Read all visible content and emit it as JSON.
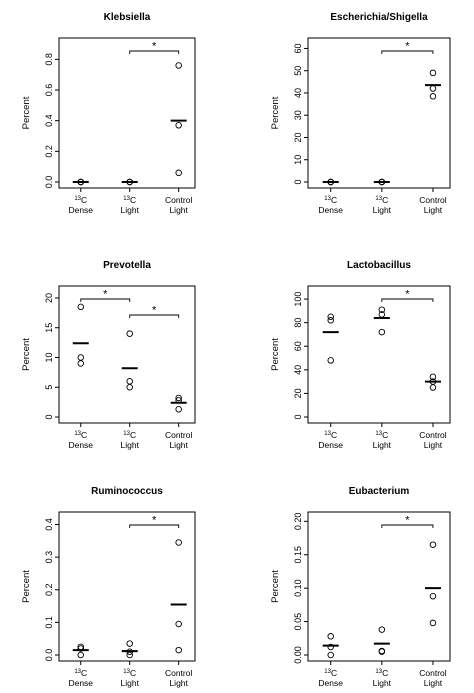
{
  "chart_data": [
    {
      "type": "scatter",
      "title": "Klebsiella",
      "ylabel": "Percent",
      "categories": [
        [
          "13C",
          "Dense"
        ],
        [
          "13C",
          "Light"
        ],
        [
          "Control",
          "Light"
        ]
      ],
      "ylim": [
        0,
        0.9
      ],
      "yticks": [
        "0.0",
        "0.2",
        "0.4",
        "0.6",
        "0.8"
      ],
      "points": [
        [
          0,
          0,
          0
        ],
        [
          0,
          0,
          0
        ],
        [
          0.76,
          0.37,
          0.06
        ]
      ],
      "means": [
        0,
        0,
        0.4
      ],
      "significance": [
        {
          "from": 1,
          "to": 2,
          "label": "*"
        }
      ]
    },
    {
      "type": "scatter",
      "title": "Escherichia/Shigella",
      "ylabel": "Percent",
      "categories": [
        [
          "13C",
          "Dense"
        ],
        [
          "13C",
          "Light"
        ],
        [
          "Control",
          "Light"
        ]
      ],
      "ylim": [
        0,
        62
      ],
      "yticks": [
        "0",
        "10",
        "20",
        "30",
        "40",
        "50",
        "60"
      ],
      "points": [
        [
          0,
          0,
          0
        ],
        [
          0,
          0,
          0
        ],
        [
          49,
          42,
          38.5
        ]
      ],
      "means": [
        0,
        0,
        43.5
      ],
      "significance": [
        {
          "from": 1,
          "to": 2,
          "label": "*"
        }
      ]
    },
    {
      "type": "scatter",
      "title": "Prevotella",
      "ylabel": "Percent",
      "categories": [
        [
          "13C",
          "Dense"
        ],
        [
          "13C",
          "Light"
        ],
        [
          "Control",
          "Light"
        ]
      ],
      "ylim": [
        0,
        21
      ],
      "yticks": [
        "0",
        "5",
        "10",
        "15",
        "20"
      ],
      "points": [
        [
          18.5,
          10,
          9
        ],
        [
          14,
          6,
          5
        ],
        [
          3.2,
          2.8,
          1.3
        ]
      ],
      "means": [
        12.4,
        8.2,
        2.4
      ],
      "significance": [
        {
          "from": 0,
          "to": 1,
          "label": "*"
        },
        {
          "from": 1,
          "to": 2,
          "label": "*"
        }
      ]
    },
    {
      "type": "scatter",
      "title": "Lactobacillus",
      "ylabel": "Percent",
      "categories": [
        [
          "13C",
          "Dense"
        ],
        [
          "13C",
          "Light"
        ],
        [
          "Control",
          "Light"
        ]
      ],
      "ylim": [
        0,
        106
      ],
      "yticks": [
        "0",
        "20",
        "40",
        "60",
        "80",
        "100"
      ],
      "points": [
        [
          85,
          82,
          48
        ],
        [
          91,
          87,
          72
        ],
        [
          34,
          30,
          25
        ]
      ],
      "means": [
        72,
        84,
        30
      ],
      "significance": [
        {
          "from": 1,
          "to": 2,
          "label": "*"
        }
      ]
    },
    {
      "type": "scatter",
      "title": "Ruminococcus",
      "ylabel": "Percent",
      "categories": [
        [
          "13C",
          "Dense"
        ],
        [
          "13C",
          "Light"
        ],
        [
          "Control",
          "Light"
        ]
      ],
      "ylim": [
        0,
        0.42
      ],
      "yticks": [
        "0.0",
        "0.1",
        "0.2",
        "0.3",
        "0.4"
      ],
      "points": [
        [
          0.025,
          0.02,
          0.0
        ],
        [
          0.035,
          0.01,
          0.0
        ],
        [
          0.345,
          0.095,
          0.015
        ]
      ],
      "means": [
        0.015,
        0.012,
        0.155
      ],
      "significance": [
        {
          "from": 1,
          "to": 2,
          "label": "*"
        }
      ]
    },
    {
      "type": "scatter",
      "title": "Eubacterium",
      "ylabel": "Percent",
      "categories": [
        [
          "13C",
          "Dense"
        ],
        [
          "13C",
          "Light"
        ],
        [
          "Control",
          "Light"
        ]
      ],
      "ylim": [
        0,
        0.205
      ],
      "yticks": [
        "0.00",
        "0.05",
        "0.10",
        "0.15",
        "0.20"
      ],
      "points": [
        [
          0.028,
          0.012,
          0.0
        ],
        [
          0.038,
          0.006,
          0.005
        ],
        [
          0.165,
          0.088,
          0.048
        ]
      ],
      "means": [
        0.014,
        0.017,
        0.1
      ],
      "significance": [
        {
          "from": 1,
          "to": 2,
          "label": "*"
        }
      ]
    }
  ]
}
